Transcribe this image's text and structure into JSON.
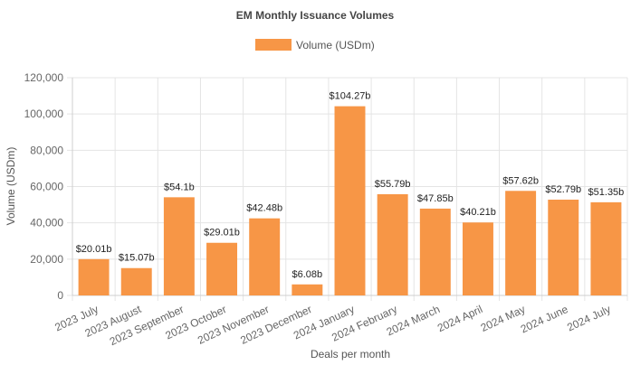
{
  "chart_data": {
    "type": "bar",
    "title": "EM Monthly Issuance Volumes",
    "xlabel": "Deals per month",
    "ylabel": "Volume (USDm)",
    "legend": {
      "position": "top",
      "entries": [
        "Volume (USDm)"
      ]
    },
    "grid": true,
    "ylim": [
      0,
      120000
    ],
    "yticks": [
      0,
      20000,
      40000,
      60000,
      80000,
      100000,
      120000
    ],
    "ytick_labels": [
      "0",
      "20,000",
      "40,000",
      "60,000",
      "80,000",
      "100,000",
      "120,000"
    ],
    "categories": [
      "2023 July",
      "2023 August",
      "2023 September",
      "2023 October",
      "2023 November",
      "2023 December",
      "2024 January",
      "2024 February",
      "2024 March",
      "2024 April",
      "2024 May",
      "2024 June",
      "2024 July"
    ],
    "series": [
      {
        "name": "Volume (USDm)",
        "color": "#f79646",
        "values": [
          20010,
          15070,
          54100,
          29010,
          42480,
          6080,
          104270,
          55790,
          47850,
          40210,
          57620,
          52790,
          51350
        ],
        "labels": [
          "$20.01b",
          "$15.07b",
          "$54.1b",
          "$29.01b",
          "$42.48b",
          "$6.08b",
          "$104.27b",
          "$55.79b",
          "$47.85b",
          "$40.21b",
          "$57.62b",
          "$52.79b",
          "$51.35b"
        ]
      }
    ]
  }
}
